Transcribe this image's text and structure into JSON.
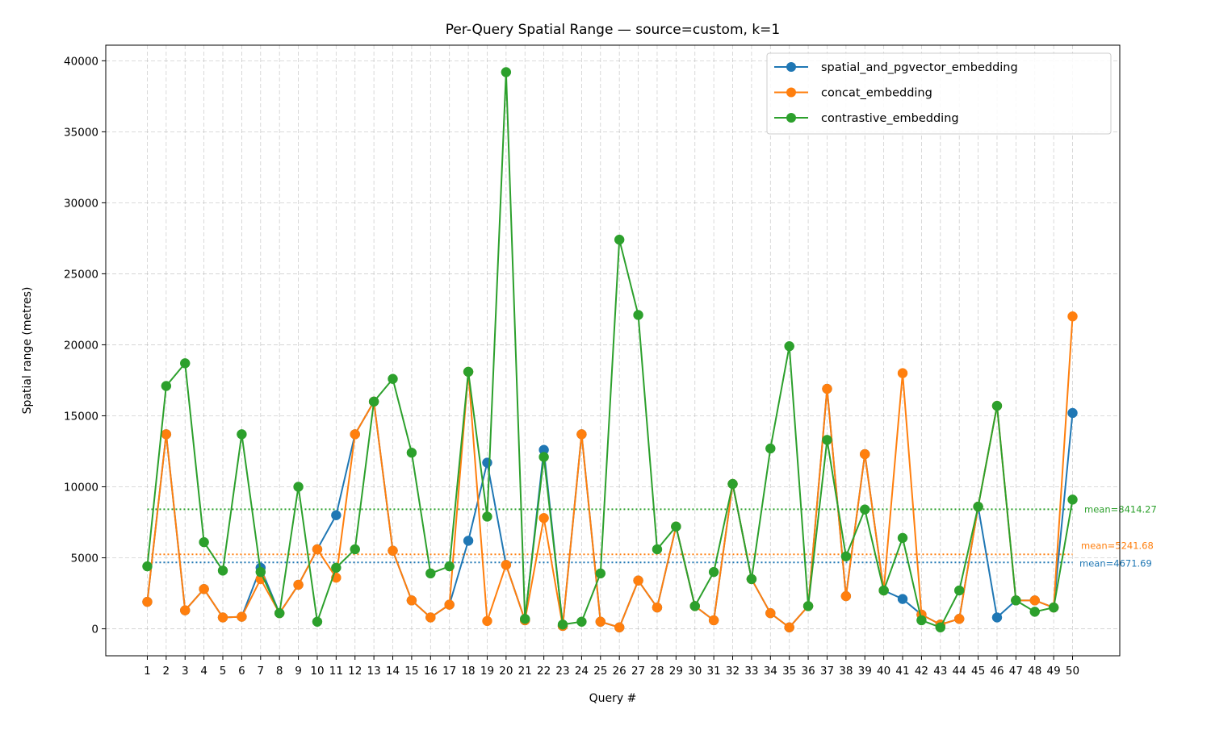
{
  "chart_data": {
    "type": "line",
    "title": "Per-Query Spatial Range — source=custom, k=1",
    "xlabel": "Query #",
    "ylabel": "Spatial range (metres)",
    "ylim": [
      -1900,
      41100
    ],
    "yticks": [
      0,
      5000,
      10000,
      15000,
      20000,
      25000,
      30000,
      35000,
      40000
    ],
    "grid": true,
    "legend_position": "top-right",
    "x": [
      1,
      2,
      3,
      4,
      5,
      6,
      7,
      8,
      9,
      10,
      11,
      12,
      13,
      14,
      15,
      16,
      17,
      18,
      19,
      20,
      21,
      22,
      23,
      24,
      25,
      26,
      27,
      28,
      29,
      30,
      31,
      32,
      33,
      34,
      35,
      36,
      37,
      38,
      39,
      40,
      41,
      42,
      43,
      44,
      45,
      46,
      47,
      48,
      49,
      50
    ],
    "xtick_labels": [
      "1",
      "2",
      "3",
      "4",
      "5",
      "6",
      "7",
      "8",
      "9",
      "10",
      "11",
      "12",
      "13",
      "14",
      "15",
      "16",
      "17",
      "18",
      "19",
      "20",
      "21",
      "22",
      "23",
      "24",
      "25",
      "26",
      "27",
      "28",
      "29",
      "30",
      "31",
      "32",
      "33",
      "34",
      "35",
      "36",
      "37",
      "38",
      "39",
      "40",
      "41",
      "42",
      "43",
      "44",
      "45",
      "46",
      "47",
      "48",
      "49",
      "50"
    ],
    "series": [
      {
        "name": "spatial_and_pgvector_embedding",
        "color": "#1f77b4",
        "mean": 4671.69,
        "mean_label": "mean=4671.69",
        "values": [
          1900,
          13700,
          1300,
          2800,
          800,
          850,
          4300,
          1100,
          3100,
          5600,
          8000,
          13700,
          16000,
          5500,
          2000,
          800,
          1700,
          6200,
          11700,
          4500,
          600,
          12600,
          200,
          13700,
          500,
          100,
          3400,
          1500,
          7200,
          1600,
          600,
          10200,
          3500,
          1100,
          100,
          1600,
          16900,
          2300,
          12300,
          2700,
          2100,
          1000,
          300,
          700,
          8600,
          800,
          2000,
          2000,
          1500,
          15200
        ]
      },
      {
        "name": "concat_embedding",
        "color": "#ff7f0e",
        "mean": 5241.68,
        "mean_label": "mean=5241.68",
        "values": [
          1900,
          13700,
          1300,
          2800,
          800,
          850,
          3500,
          1100,
          3100,
          5600,
          3600,
          13700,
          16000,
          5500,
          2000,
          800,
          1700,
          18100,
          550,
          4500,
          600,
          7800,
          200,
          13700,
          500,
          100,
          3400,
          1500,
          7200,
          1600,
          600,
          10200,
          3500,
          1100,
          100,
          1600,
          16900,
          2300,
          12300,
          2700,
          18000,
          1000,
          300,
          700,
          8600,
          15700,
          2000,
          2000,
          1500,
          22000
        ]
      },
      {
        "name": "contrastive_embedding",
        "color": "#2ca02c",
        "mean": 8414.27,
        "mean_label": "mean=8414.27",
        "values": [
          4400,
          17100,
          18700,
          6100,
          4100,
          13700,
          4000,
          1100,
          10000,
          500,
          4300,
          5600,
          16000,
          17600,
          12400,
          3900,
          4400,
          18100,
          7900,
          39200,
          700,
          12100,
          300,
          500,
          3900,
          27400,
          22100,
          5600,
          7200,
          1600,
          4000,
          10200,
          3500,
          12700,
          19900,
          1600,
          13300,
          5100,
          8400,
          2700,
          6400,
          600,
          100,
          2700,
          8600,
          15700,
          2000,
          1200,
          1500,
          9100
        ]
      }
    ]
  }
}
